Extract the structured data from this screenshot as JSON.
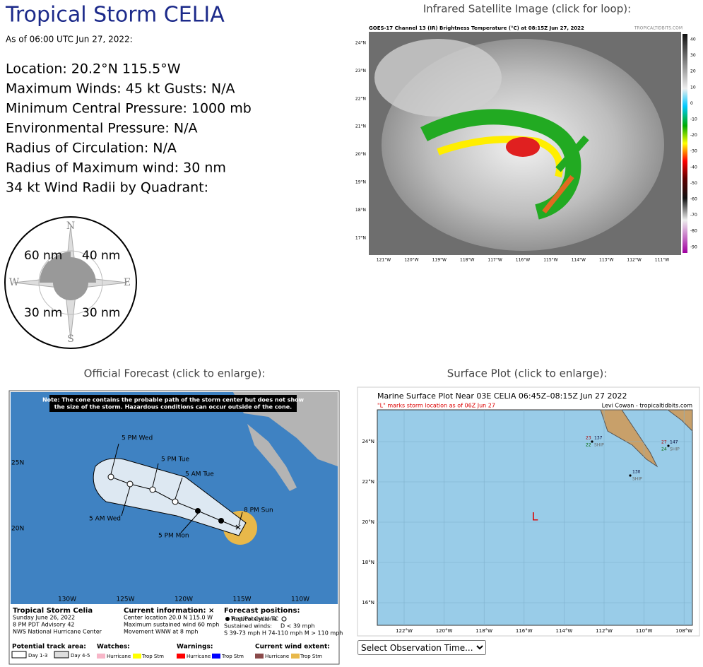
{
  "header": {
    "title": "Tropical Storm CELIA",
    "as_of": "As of 06:00 UTC Jun 27, 2022:"
  },
  "info": [
    "Location: 20.2°N 115.5°W",
    "Maximum Winds: 45 kt  Gusts: N/A",
    "Minimum Central Pressure: 1000 mb",
    "Environmental Pressure: N/A",
    "Radius of Circulation: N/A",
    "Radius of Maximum wind: 30 nm",
    "34 kt Wind Radii by Quadrant:"
  ],
  "wind_radii": {
    "compass": [
      "N",
      "E",
      "S",
      "W"
    ],
    "nw": "60 nm",
    "ne": "40 nm",
    "sw": "30 nm",
    "se": "30 nm"
  },
  "satellite": {
    "heading": "Infrared Satellite Image (click for loop):",
    "title": "GOES-17 Channel 13 (IR) Brightness Temperature (°C) at 08:15Z Jun 27, 2022",
    "credit": "TROPICALTIDBITS.COM",
    "lat_labels": [
      "24°N",
      "23°N",
      "22°N",
      "21°N",
      "20°N",
      "19°N",
      "18°N",
      "17°N"
    ],
    "lon_labels": [
      "121°W",
      "120°W",
      "119°W",
      "118°W",
      "117°W",
      "116°W",
      "115°W",
      "114°W",
      "113°W",
      "112°W",
      "111°W"
    ],
    "scale_labels": [
      "40",
      "30",
      "20",
      "10",
      "0",
      "-10",
      "-20",
      "-30",
      "-40",
      "-50",
      "-60",
      "-70",
      "-80",
      "-90"
    ]
  },
  "forecast": {
    "heading": "Official Forecast (click to enlarge):",
    "note": [
      "Note: The cone contains the probable path of the storm center but does not show",
      "the size of the storm. Hazardous conditions can occur outside of the cone."
    ],
    "track_labels": [
      "5 PM Wed",
      "5 PM Tue",
      "5 AM Tue",
      "5 AM Wed",
      "5 PM Mon",
      "8 PM Sun"
    ],
    "lat_labels": [
      "25N",
      "20N"
    ],
    "lon_labels": [
      "130W",
      "125W",
      "120W",
      "115W",
      "110W"
    ],
    "storm": [
      "Tropical Storm Celia",
      "Sunday June 26, 2022",
      "8 PM PDT Advisory 42",
      "NWS National Hurricane Center"
    ],
    "current": [
      "Current information: ×",
      "Center location 20.0 N 115.0 W",
      "Maximum sustained wind 60 mph",
      "Movement WNW at 8 mph"
    ],
    "positions": [
      "Forecast positions:",
      "Tropical Cyclone",
      "Post/Potential TC",
      "Sustained winds:",
      "D < 39 mph",
      "S 39-73 mph  H 74-110 mph  M > 110 mph"
    ],
    "legend": {
      "track": "Potential track area:",
      "day13": "Day 1-3",
      "day45": "Day 4-5",
      "watches": "Watches:",
      "warnings": "Warnings:",
      "extent": "Current wind extent:",
      "hurricane": [
        "Hurricane",
        "Hurricane",
        "Hurricane"
      ],
      "tropstm": [
        "Trop Stm",
        "Trop Stm",
        "Trop Stm"
      ]
    }
  },
  "surface": {
    "heading": "Surface Plot (click to enlarge):",
    "title": "Marine Surface Plot Near 03E CELIA 06:45Z–08:15Z Jun 27 2022",
    "subtitle": "\"L\" marks storm location as of 06Z Jun 27",
    "credit": "Levi Cowan - tropicaltidbits.com",
    "lat_labels": [
      "24°N",
      "22°N",
      "20°N",
      "18°N",
      "16°N"
    ],
    "lon_labels": [
      "122°W",
      "120°W",
      "118°W",
      "116°W",
      "114°W",
      "112°W",
      "110°W",
      "108°W"
    ],
    "marker": "L",
    "obs": [
      [
        "23",
        "137",
        "22",
        "SHIP"
      ],
      [
        "27",
        "147",
        "24",
        "SHIP"
      ],
      [
        "130",
        "SHIP"
      ]
    ]
  },
  "select": "Select Observation Time..."
}
